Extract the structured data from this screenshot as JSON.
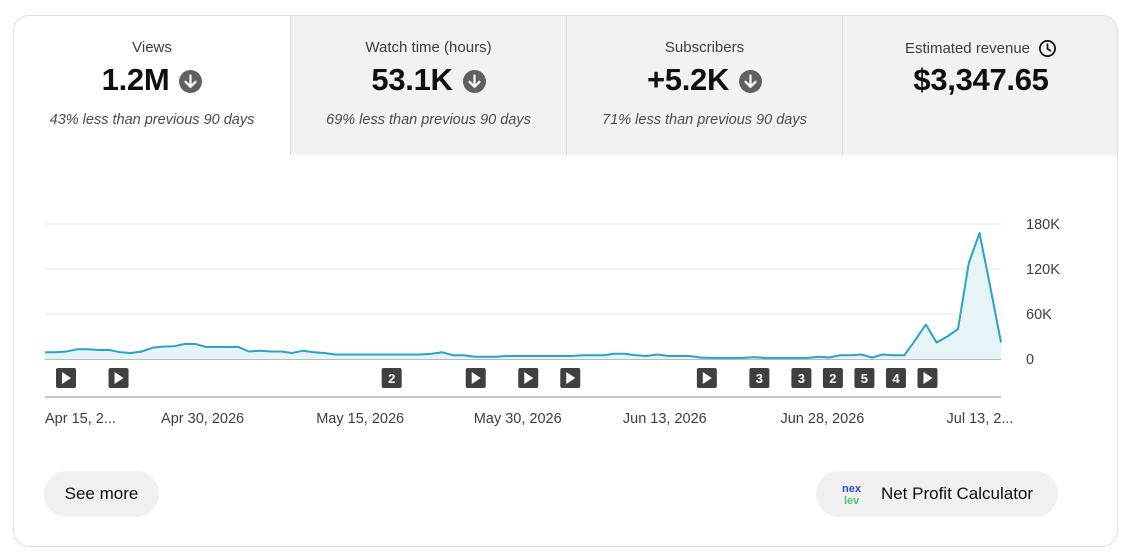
{
  "metrics": [
    {
      "label": "Views",
      "value": "1.2M",
      "sub": "43% less than previous 90 days",
      "trend_icon": "arrow-down-circle-icon",
      "active": true
    },
    {
      "label": "Watch time (hours)",
      "value": "53.1K",
      "sub": "69% less than previous 90 days",
      "trend_icon": "arrow-down-circle-icon",
      "active": false
    },
    {
      "label": "Subscribers",
      "value": "+5.2K",
      "sub": "71% less than previous 90 days",
      "trend_icon": "arrow-down-circle-icon",
      "active": false
    },
    {
      "label": "Estimated revenue",
      "value": "$3,347.65",
      "sub": "",
      "label_icon": "clock-icon",
      "active": false
    }
  ],
  "chart_data": {
    "type": "area",
    "x_start": "Apr 15, 2026",
    "x_end": "Jul 15, 2026",
    "xtick_labels": [
      "Apr 15, 2...",
      "Apr 30, 2026",
      "May 15, 2026",
      "May 30, 2026",
      "Jun 13, 2026",
      "Jun 28, 2026",
      "Jul 13, 2..."
    ],
    "ytick_labels": [
      "180K",
      "120K",
      "60K",
      "0"
    ],
    "yticks": [
      180000,
      120000,
      60000,
      0
    ],
    "ylim": [
      0,
      180000
    ],
    "grid": true,
    "series": [
      {
        "values": [
          9000,
          9000,
          10000,
          13000,
          13000,
          12000,
          12000,
          9000,
          8000,
          10000,
          15000,
          16500,
          17000,
          20000,
          20000,
          16000,
          16000,
          16000,
          16000,
          10000,
          11000,
          10000,
          10000,
          8000,
          11000,
          9000,
          8000,
          6000,
          6000,
          6000,
          6000,
          6000,
          6000,
          6000,
          6000,
          6000,
          7000,
          9000,
          5000,
          5000,
          3000,
          3000,
          3000,
          4000,
          4000,
          4000,
          4000,
          4000,
          4000,
          4000,
          5000,
          5000,
          5000,
          7000,
          7000,
          5000,
          4000,
          6000,
          4000,
          4000,
          4000,
          2000,
          1500,
          1500,
          1500,
          1500,
          2500,
          1500,
          1500,
          1500,
          1500,
          1500,
          3000,
          2000,
          5000,
          5000,
          6000,
          2000,
          6000,
          5000,
          5000,
          25000,
          46000,
          22000,
          30000,
          40000,
          128000,
          168000,
          96000,
          22000
        ],
        "color": "#2ba3c4"
      }
    ],
    "video_markers": [
      {
        "date": "Apr 17",
        "label": ""
      },
      {
        "date": "Apr 22",
        "label": ""
      },
      {
        "date": "May 18",
        "label": "2"
      },
      {
        "date": "May 26",
        "label": ""
      },
      {
        "date": "May 31",
        "label": ""
      },
      {
        "date": "Jun 4",
        "label": ""
      },
      {
        "date": "Jun 17",
        "label": ""
      },
      {
        "date": "Jun 22",
        "label": "3"
      },
      {
        "date": "Jun 26",
        "label": "3"
      },
      {
        "date": "Jun 29",
        "label": "2"
      },
      {
        "date": "Jul 2",
        "label": "5"
      },
      {
        "date": "Jul 5",
        "label": "4"
      },
      {
        "date": "Jul 8",
        "label": ""
      }
    ]
  },
  "buttons": {
    "see_more": "See more",
    "calculator": "Net Profit Calculator",
    "calculator_logo": "nexlev-logo"
  }
}
